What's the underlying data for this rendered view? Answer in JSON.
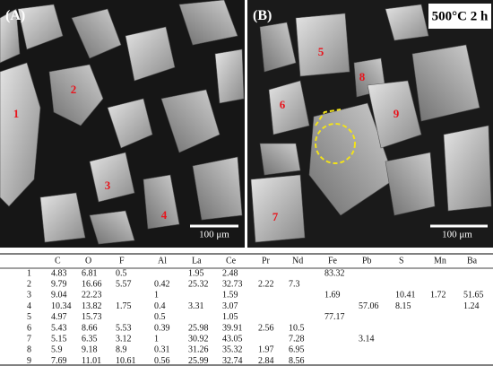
{
  "figure": {
    "panel_a": "(A)",
    "panel_b": "(B)",
    "condition": "500°C 2 h",
    "scale_a": "100 μm",
    "scale_b": "100 μm",
    "points": [
      "1",
      "2",
      "3",
      "4",
      "5",
      "6",
      "7",
      "8",
      "9"
    ]
  },
  "table": {
    "columns": [
      "C",
      "O",
      "F",
      "Al",
      "La",
      "Ce",
      "Pr",
      "Nd",
      "Fe",
      "Pb",
      "S",
      "Mn",
      "Ba"
    ],
    "rows": [
      [
        "1",
        4.83,
        6.81,
        0.5,
        null,
        1.95,
        2.48,
        null,
        null,
        83.32,
        null,
        null,
        null,
        null
      ],
      [
        "2",
        9.79,
        16.66,
        5.57,
        0.42,
        25.32,
        32.73,
        2.22,
        7.3,
        null,
        null,
        null,
        null,
        null
      ],
      [
        "3",
        9.04,
        22.23,
        null,
        1,
        null,
        1.59,
        null,
        null,
        1.69,
        null,
        10.41,
        1.72,
        51.65
      ],
      [
        "4",
        10.34,
        13.82,
        1.75,
        0.4,
        3.31,
        3.07,
        null,
        null,
        null,
        57.06,
        8.15,
        null,
        1.24
      ],
      [
        "5",
        4.97,
        15.73,
        null,
        0.5,
        null,
        1.05,
        null,
        null,
        77.17,
        null,
        null,
        null,
        null
      ],
      [
        "6",
        5.43,
        8.66,
        5.53,
        0.39,
        25.98,
        39.91,
        2.56,
        10.5,
        null,
        null,
        null,
        null,
        null
      ],
      [
        "7",
        5.15,
        6.35,
        3.12,
        1,
        30.92,
        43.05,
        null,
        7.28,
        null,
        3.14,
        null,
        null,
        null
      ],
      [
        "8",
        5.9,
        9.18,
        8.9,
        0.31,
        31.26,
        35.32,
        1.97,
        6.95,
        null,
        null,
        null,
        null,
        null
      ],
      [
        "9",
        7.69,
        11.01,
        10.61,
        0.56,
        25.99,
        32.74,
        2.84,
        8.56,
        null,
        null,
        null,
        null,
        null
      ]
    ]
  }
}
